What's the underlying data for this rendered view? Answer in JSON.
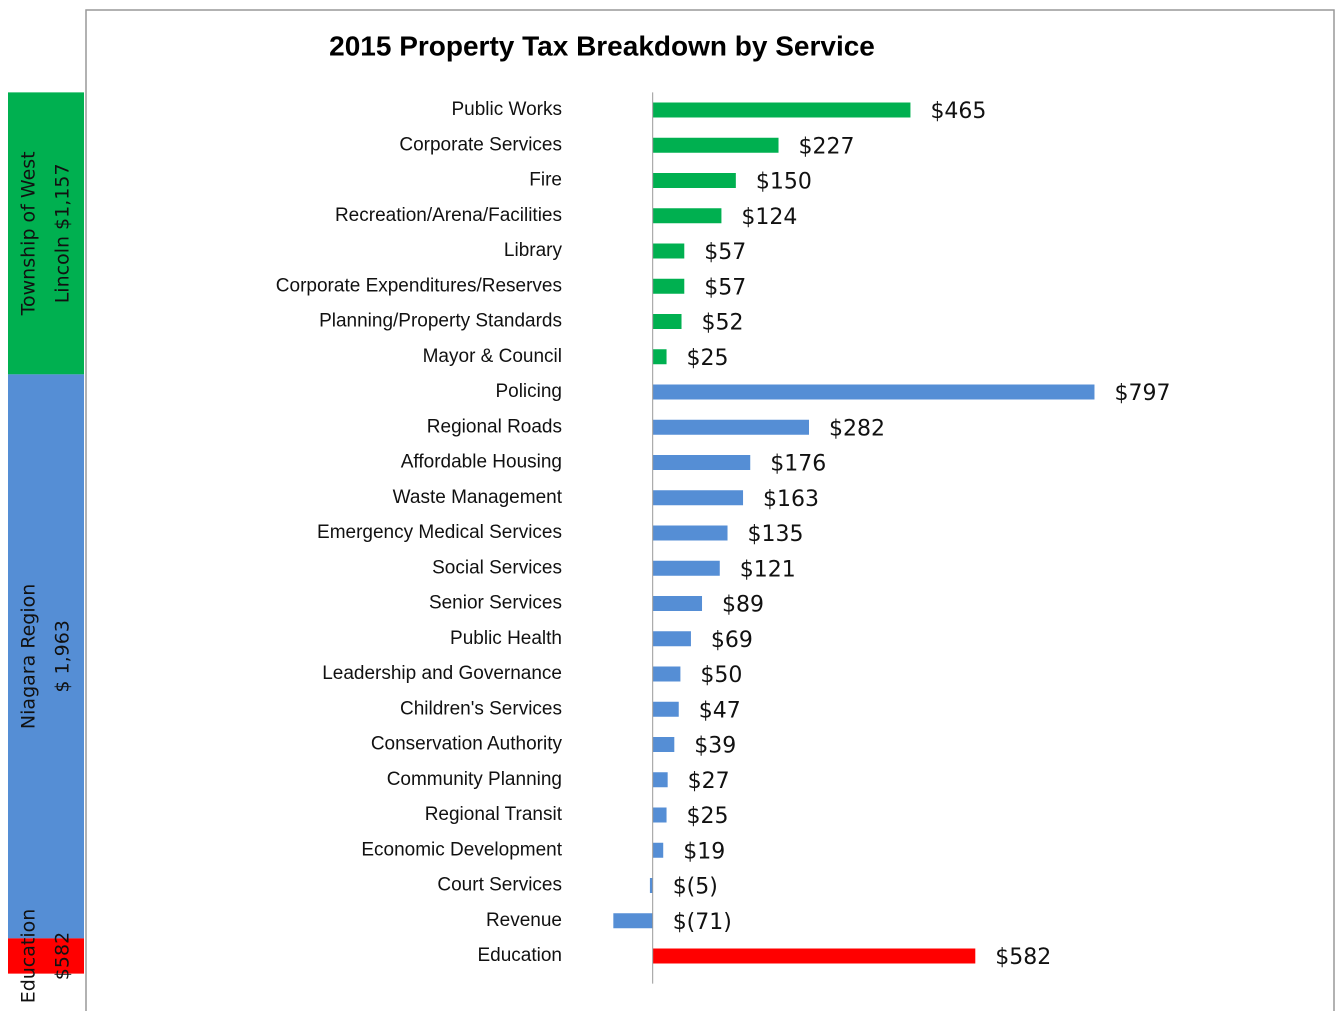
{
  "chart_data": {
    "type": "bar",
    "orientation": "horizontal",
    "title": "2015 Property Tax Breakdown by Service",
    "xlim": [
      -160,
      1000
    ],
    "series": [
      {
        "name": [
          "Township of West",
          "Lincoln $1,157"
        ],
        "color": "#00b050",
        "categories": [
          "Public Works",
          "Corporate Services",
          "Fire",
          "Recreation/Arena/Facilities",
          "Library",
          "Corporate Expenditures/Reserves",
          "Planning/Property Standards",
          "Mayor & Council"
        ],
        "values": [
          465,
          227,
          150,
          124,
          57,
          57,
          52,
          25
        ],
        "value_labels": [
          "$465",
          "$227",
          "$150",
          "$124",
          "$57",
          "$57",
          "$52",
          "$25"
        ]
      },
      {
        "name": [
          "Niagara Region",
          "$ 1,963"
        ],
        "color": "#558ed5",
        "categories": [
          "Policing",
          "Regional Roads",
          "Affordable Housing",
          "Waste Management",
          "Emergency Medical Services",
          "Social Services",
          "Senior Services",
          "Public Health",
          "Leadership and Governance",
          "Children's Services",
          "Conservation Authority",
          "Community Planning",
          "Regional Transit",
          "Economic Development",
          "Court Services",
          "Revenue"
        ],
        "values": [
          797,
          282,
          176,
          163,
          135,
          121,
          89,
          69,
          50,
          47,
          39,
          27,
          25,
          19,
          -5,
          -71
        ],
        "value_labels": [
          "$797",
          "$282",
          "$176",
          "$163",
          "$135",
          "$121",
          "$89",
          "$69",
          "$50",
          "$47",
          "$39",
          "$27",
          "$25",
          "$19",
          "$(5)",
          "$(71)"
        ]
      },
      {
        "name": [
          "Education",
          "$582"
        ],
        "color": "#ff0000",
        "categories": [
          "Education"
        ],
        "values": [
          582
        ],
        "value_labels": [
          "$582"
        ]
      }
    ]
  }
}
